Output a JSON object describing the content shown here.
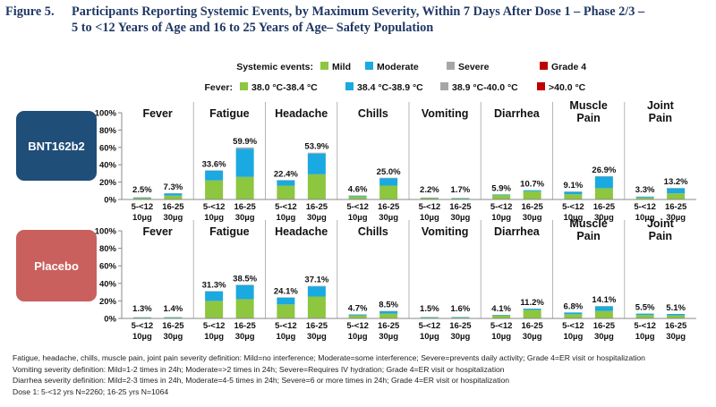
{
  "figure": {
    "label": "Figure 5.",
    "title_line1": "Participants Reporting Systemic Events, by Maximum Severity, Within 7 Days After Dose 1 – Phase 2/3 –",
    "title_line2": "5 to <12 Years of Age and 16 to 25 Years of Age– Safety Population"
  },
  "legend": {
    "systemic_label": "Systemic events:",
    "fever_label": "Fever:",
    "systemic_items": [
      "Mild",
      "Moderate",
      "Severe",
      "Grade 4"
    ],
    "fever_items": [
      "38.0 °C-38.4 °C",
      "38.4 °C-38.9 °C",
      "38.9 °C-40.0 °C",
      ">40.0 °C"
    ],
    "colors": [
      "#8dc63f",
      "#1aa9e0",
      "#a6a6a6",
      "#c00000"
    ]
  },
  "footnotes": [
    "Fatigue, headache, chills, muscle pain, joint pain severity definition: Mild=no interference; Moderate=some interference; Severe=prevents daily activity; Grade 4=ER visit or hospitalization",
    "Vomiting severity definition: Mild=1-2 times in 24h; Moderate=>2 times in 24h; Severe=Requires IV hydration; Grade 4=ER visit or hospitalization",
    "Diarrhea severity definition: Mild=2-3 times in 24h, Moderate=4-5 times in 24h; Severe=6 or more times in 24h; Grade 4=ER visit or hospitalization",
    "Dose 1: 5-<12 yrs N=2260; 16-25 yrs N=1064"
  ],
  "chart_data": {
    "type": "bar",
    "stacked": true,
    "ylim": [
      0,
      100
    ],
    "yticks": [
      "0%",
      "20%",
      "40%",
      "60%",
      "80%",
      "100%"
    ],
    "categories": [
      "Fever",
      "Fatigue",
      "Headache",
      "Chills",
      "Vomiting",
      "Diarrhea",
      "Muscle Pain",
      "Joint Pain"
    ],
    "category_title_lines": [
      [
        "Fever"
      ],
      [
        "Fatigue"
      ],
      [
        "Headache"
      ],
      [
        "Chills"
      ],
      [
        "Vomiting"
      ],
      [
        "Diarrhea"
      ],
      [
        "Muscle",
        "Pain"
      ],
      [
        "Joint",
        "Pain"
      ]
    ],
    "groups": [
      {
        "line1": "5-<12",
        "line2": "10µg"
      },
      {
        "line1": "16-25",
        "line2": "30µg"
      }
    ],
    "series_names": [
      "Mild",
      "Moderate",
      "Severe",
      "Grade 4"
    ],
    "panels": [
      {
        "name": "BNT162b2",
        "color": "#1f4e79",
        "bars": [
          [
            {
              "total": 2.5,
              "label": "2.5%",
              "stack": [
                1.6,
                0.8,
                0.1,
                0
              ]
            },
            {
              "total": 7.3,
              "label": "7.3%",
              "stack": [
                4.5,
                2.6,
                0.2,
                0
              ]
            }
          ],
          [
            {
              "total": 33.6,
              "label": "33.6%",
              "stack": [
                22,
                11,
                0.6,
                0
              ]
            },
            {
              "total": 59.9,
              "label": "59.9%",
              "stack": [
                26,
                32.5,
                1.4,
                0
              ]
            }
          ],
          [
            {
              "total": 22.4,
              "label": "22.4%",
              "stack": [
                16,
                6.1,
                0.3,
                0
              ]
            },
            {
              "total": 53.9,
              "label": "53.9%",
              "stack": [
                29,
                23.9,
                1,
                0
              ]
            }
          ],
          [
            {
              "total": 4.6,
              "label": "4.6%",
              "stack": [
                3.4,
                1.1,
                0.1,
                0
              ]
            },
            {
              "total": 25.0,
              "label": "25.0%",
              "stack": [
                16,
                8.6,
                0.4,
                0
              ]
            }
          ],
          [
            {
              "total": 2.2,
              "label": "2.2%",
              "stack": [
                1.8,
                0.3,
                0.1,
                0
              ]
            },
            {
              "total": 1.7,
              "label": "1.7%",
              "stack": [
                1.3,
                0.4,
                0,
                0
              ]
            }
          ],
          [
            {
              "total": 5.9,
              "label": "5.9%",
              "stack": [
                5.3,
                0.6,
                0,
                0
              ]
            },
            {
              "total": 10.7,
              "label": "10.7%",
              "stack": [
                9.5,
                1.2,
                0,
                0
              ]
            }
          ],
          [
            {
              "total": 9.1,
              "label": "9.1%",
              "stack": [
                6,
                3,
                0.1,
                0
              ]
            },
            {
              "total": 26.9,
              "label": "26.9%",
              "stack": [
                13,
                13.5,
                0.4,
                0
              ]
            }
          ],
          [
            {
              "total": 3.3,
              "label": "3.3%",
              "stack": [
                2.2,
                1.1,
                0,
                0
              ]
            },
            {
              "total": 13.2,
              "label": "13.2%",
              "stack": [
                7,
                6,
                0.2,
                0
              ]
            }
          ]
        ]
      },
      {
        "name": "Placebo",
        "color": "#c9605d",
        "bars": [
          [
            {
              "total": 1.3,
              "label": "1.3%",
              "stack": [
                0.9,
                0.3,
                0.1,
                0
              ]
            },
            {
              "total": 1.4,
              "label": "1.4%",
              "stack": [
                1,
                0.4,
                0,
                0
              ]
            }
          ],
          [
            {
              "total": 31.3,
              "label": "31.3%",
              "stack": [
                20,
                10.8,
                0.5,
                0
              ]
            },
            {
              "total": 38.5,
              "label": "38.5%",
              "stack": [
                22,
                15.8,
                0.7,
                0
              ]
            }
          ],
          [
            {
              "total": 24.1,
              "label": "24.1%",
              "stack": [
                16,
                7.8,
                0.3,
                0
              ]
            },
            {
              "total": 37.1,
              "label": "37.1%",
              "stack": [
                25,
                11.6,
                0.5,
                0
              ]
            }
          ],
          [
            {
              "total": 4.7,
              "label": "4.7%",
              "stack": [
                3.3,
                1.3,
                0.1,
                0
              ]
            },
            {
              "total": 8.5,
              "label": "8.5%",
              "stack": [
                5.5,
                2.9,
                0.1,
                0
              ]
            }
          ],
          [
            {
              "total": 1.5,
              "label": "1.5%",
              "stack": [
                1.2,
                0.3,
                0,
                0
              ]
            },
            {
              "total": 1.6,
              "label": "1.6%",
              "stack": [
                1.2,
                0.4,
                0,
                0
              ]
            }
          ],
          [
            {
              "total": 4.1,
              "label": "4.1%",
              "stack": [
                3.5,
                0.6,
                0,
                0
              ]
            },
            {
              "total": 11.2,
              "label": "11.2%",
              "stack": [
                9.8,
                1.4,
                0,
                0
              ]
            }
          ],
          [
            {
              "total": 6.8,
              "label": "6.8%",
              "stack": [
                4.8,
                2,
                0,
                0
              ]
            },
            {
              "total": 14.1,
              "label": "14.1%",
              "stack": [
                8.5,
                5.4,
                0.2,
                0
              ]
            }
          ],
          [
            {
              "total": 5.5,
              "label": "5.5%",
              "stack": [
                4,
                1.5,
                0,
                0
              ]
            },
            {
              "total": 5.1,
              "label": "5.1%",
              "stack": [
                3.5,
                1.6,
                0,
                0
              ]
            }
          ]
        ]
      }
    ]
  }
}
